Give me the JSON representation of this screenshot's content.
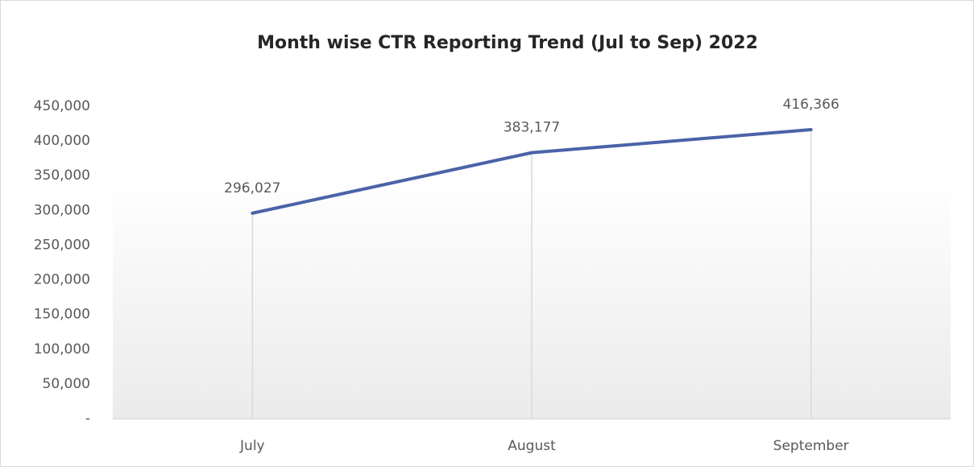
{
  "chart_data": {
    "type": "line",
    "title": "Month wise CTR Reporting Trend (Jul to Sep) 2022",
    "categories": [
      "July",
      "August",
      "September"
    ],
    "values": [
      296027,
      383177,
      416366
    ],
    "value_labels": [
      "296,027",
      "383,177",
      "416,366"
    ],
    "color": "#4a63a8",
    "ylim": [
      0,
      450000
    ],
    "yticks": [
      {
        "value": 0,
        "label": "-"
      },
      {
        "value": 50000,
        "label": "50,000"
      },
      {
        "value": 100000,
        "label": "100,000"
      },
      {
        "value": 150000,
        "label": "150,000"
      },
      {
        "value": 200000,
        "label": "200,000"
      },
      {
        "value": 250000,
        "label": "250,000"
      },
      {
        "value": 300000,
        "label": "300,000"
      },
      {
        "value": 350000,
        "label": "350,000"
      },
      {
        "value": 400000,
        "label": "400,000"
      },
      {
        "value": 450000,
        "label": "450,000"
      }
    ],
    "grid": false
  }
}
